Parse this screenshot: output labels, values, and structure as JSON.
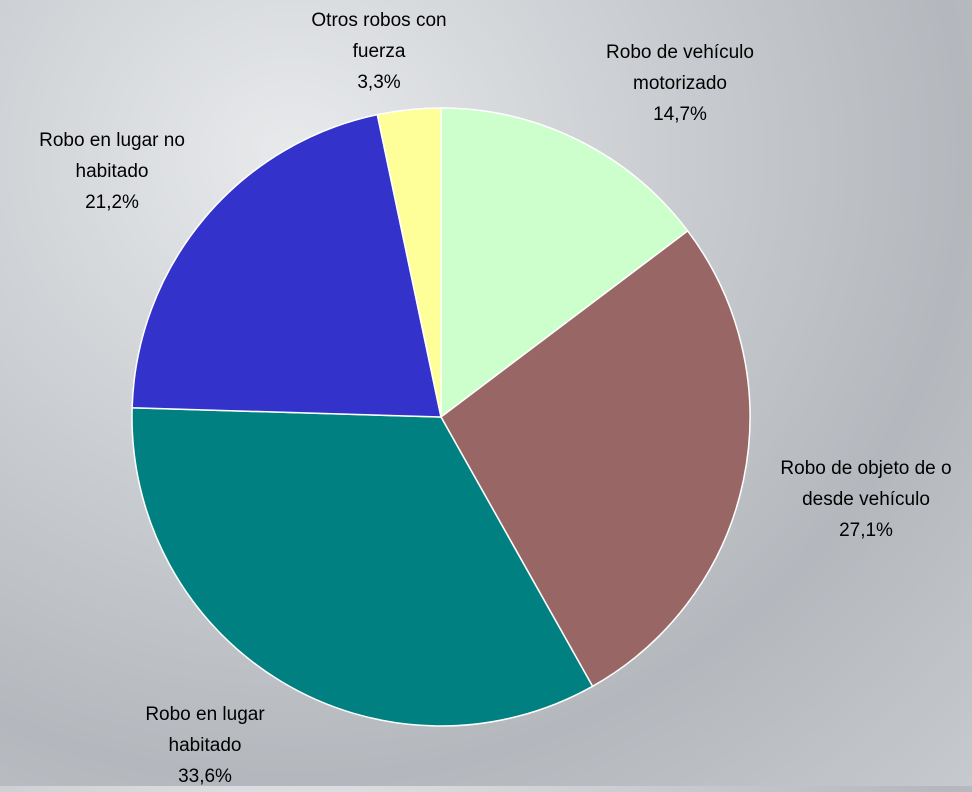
{
  "chart_data": {
    "type": "pie",
    "categories": [
      "Robo de vehículo motorizado",
      "Robo de objeto de o desde vehículo",
      "Robo en lugar habitado",
      "Robo en lugar no habitado",
      "Otros robos con fuerza"
    ],
    "values": [
      14.7,
      27.1,
      33.6,
      21.2,
      3.3
    ],
    "value_labels": [
      "14,7%",
      "27,1%",
      "33,6%",
      "21,2%",
      "3,3%"
    ],
    "colors": [
      "#ccffcc",
      "#996666",
      "#008080",
      "#3333cc",
      "#ffff99"
    ]
  }
}
